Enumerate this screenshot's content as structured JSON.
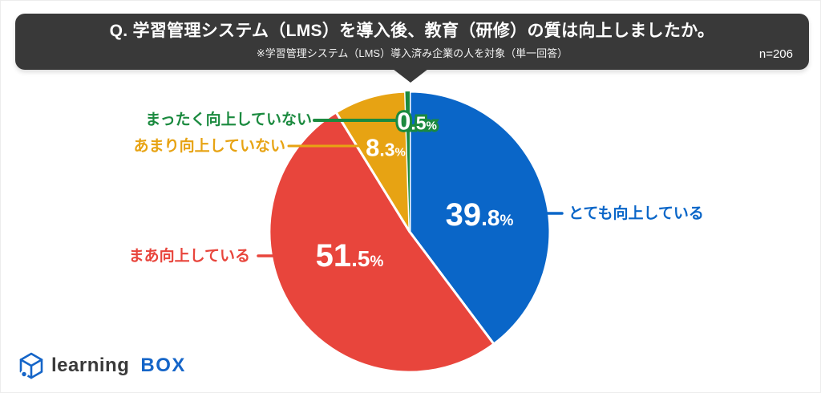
{
  "header": {
    "title": "Q. 学習管理システム（LMS）を導入後、教育（研修）の質は向上しましたか。",
    "subtitle": "※学習管理システム（LMS）導入済み企業の人を対象（単一回答）",
    "sample_label": "n=206"
  },
  "chart_data": {
    "type": "pie",
    "title": "Q. 学習管理システム（LMS）を導入後、教育（研修）の質は向上しましたか。",
    "note": "※学習管理システム（LMS）導入済み企業の人を対象（単一回答）",
    "sample_size": 206,
    "unit": "%",
    "start_angle": "top",
    "direction": "clockwise",
    "legend_position": "outside-callouts",
    "slices": [
      {
        "label": "とても向上している",
        "value": 39.8,
        "color": "#0A66C8"
      },
      {
        "label": "まあ向上している",
        "value": 51.5,
        "color": "#E8453C"
      },
      {
        "label": "あまり向上していない",
        "value": 8.3,
        "color": "#E7A313"
      },
      {
        "label": "まったく向上していない",
        "value": 0.5,
        "color": "#1B8A3F"
      }
    ]
  },
  "logo": {
    "learning": "learning",
    "box": "BOX"
  }
}
